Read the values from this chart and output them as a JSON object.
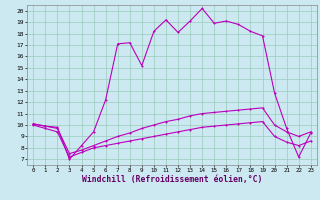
{
  "title": "",
  "xlabel": "Windchill (Refroidissement éolien,°C)",
  "ylabel_values": [
    7,
    8,
    9,
    10,
    11,
    12,
    13,
    14,
    15,
    16,
    17,
    18,
    19,
    20
  ],
  "xlim": [
    -0.5,
    23.5
  ],
  "ylim": [
    6.5,
    20.5
  ],
  "bg_color": "#cce8f0",
  "grid_color": "#99ccbb",
  "line_color": "#bb00bb",
  "main_line": [
    10.1,
    9.9,
    9.8,
    7.0,
    8.2,
    9.4,
    12.2,
    17.1,
    17.2,
    15.2,
    18.2,
    19.2,
    18.1,
    19.1,
    20.2,
    18.9,
    19.1,
    18.8,
    18.2,
    17.8,
    12.8,
    9.7,
    7.2,
    9.3
  ],
  "lower_line": [
    10.0,
    9.7,
    9.4,
    7.2,
    7.6,
    8.0,
    8.2,
    8.4,
    8.6,
    8.8,
    9.0,
    9.2,
    9.4,
    9.6,
    9.8,
    9.9,
    10.0,
    10.1,
    10.2,
    10.3,
    9.0,
    8.5,
    8.2,
    8.6
  ],
  "upper_line": [
    10.1,
    9.9,
    9.7,
    7.5,
    7.8,
    8.2,
    8.6,
    9.0,
    9.3,
    9.7,
    10.0,
    10.3,
    10.5,
    10.8,
    11.0,
    11.1,
    11.2,
    11.3,
    11.4,
    11.5,
    10.0,
    9.4,
    9.0,
    9.4
  ],
  "hours": [
    0,
    1,
    2,
    3,
    4,
    5,
    6,
    7,
    8,
    9,
    10,
    11,
    12,
    13,
    14,
    15,
    16,
    17,
    18,
    19,
    20,
    21,
    22,
    23
  ],
  "xtick_fontsize": 4.2,
  "ytick_fontsize": 4.5,
  "xlabel_fontsize": 5.8,
  "lw": 0.8,
  "ms": 2.0
}
